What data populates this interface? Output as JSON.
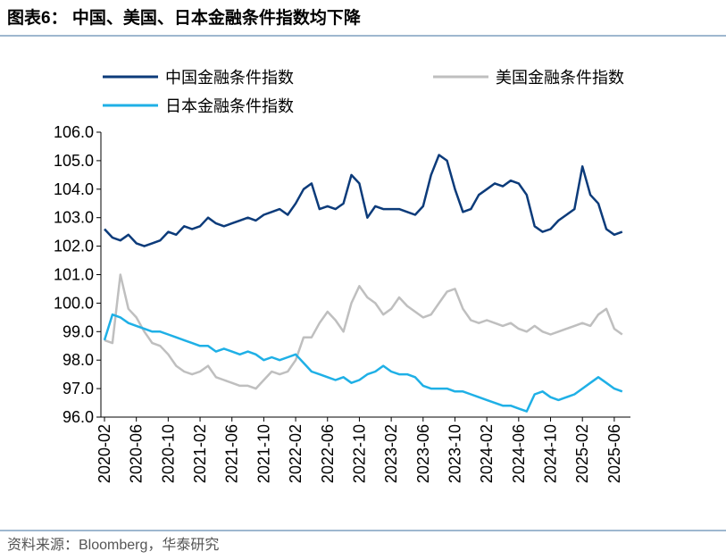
{
  "chart_data": {
    "type": "line",
    "title": "图表6：  中国、美国、日本金融条件指数均下降",
    "source": "资料来源：Bloomberg，华泰研究",
    "x": [
      "2020-02",
      "2020-03",
      "2020-04",
      "2020-05",
      "2020-06",
      "2020-07",
      "2020-08",
      "2020-09",
      "2020-10",
      "2020-11",
      "2020-12",
      "2021-01",
      "2021-02",
      "2021-03",
      "2021-04",
      "2021-05",
      "2021-06",
      "2021-07",
      "2021-08",
      "2021-09",
      "2021-10",
      "2021-11",
      "2021-12",
      "2022-01",
      "2022-02",
      "2022-03",
      "2022-04",
      "2022-05",
      "2022-06",
      "2022-07",
      "2022-08",
      "2022-09",
      "2022-10",
      "2022-11",
      "2022-12",
      "2023-01",
      "2023-02",
      "2023-03",
      "2023-04",
      "2023-05",
      "2023-06",
      "2023-07",
      "2023-08",
      "2023-09",
      "2023-10",
      "2023-11",
      "2023-12",
      "2024-01",
      "2024-02",
      "2024-03",
      "2024-04",
      "2024-05",
      "2024-06",
      "2024-07",
      "2024-08",
      "2024-09",
      "2024-10",
      "2024-11",
      "2024-12",
      "2025-01",
      "2025-02",
      "2025-03",
      "2025-04",
      "2025-05",
      "2025-06",
      "2025-07"
    ],
    "xticks": [
      "2020-02",
      "2020-06",
      "2020-10",
      "2021-02",
      "2021-06",
      "2021-10",
      "2022-02",
      "2022-06",
      "2022-10",
      "2023-02",
      "2023-06",
      "2023-10",
      "2024-02",
      "2024-06",
      "2024-10",
      "2025-02",
      "2025-06"
    ],
    "series": [
      {
        "name": "中国金融条件指数",
        "color": "#0c3b7a",
        "values": [
          102.6,
          102.3,
          102.2,
          102.4,
          102.1,
          102.0,
          102.1,
          102.2,
          102.5,
          102.4,
          102.7,
          102.6,
          102.7,
          103.0,
          102.8,
          102.7,
          102.8,
          102.9,
          103.0,
          102.9,
          103.1,
          103.2,
          103.3,
          103.1,
          103.5,
          104.0,
          104.2,
          103.3,
          103.4,
          103.3,
          103.5,
          104.5,
          104.2,
          103.0,
          103.4,
          103.3,
          103.3,
          103.3,
          103.2,
          103.1,
          103.4,
          104.5,
          105.2,
          105.0,
          104.0,
          103.2,
          103.3,
          103.8,
          104.0,
          104.2,
          104.1,
          104.3,
          104.2,
          103.8,
          102.7,
          102.5,
          102.6,
          102.9,
          103.1,
          103.3,
          104.8,
          103.8,
          103.5,
          102.6,
          102.4,
          102.5
        ]
      },
      {
        "name": "美国金融条件指数",
        "color": "#bfbfbf",
        "values": [
          98.7,
          98.6,
          101.0,
          99.8,
          99.5,
          99.0,
          98.6,
          98.5,
          98.2,
          97.8,
          97.6,
          97.5,
          97.6,
          97.8,
          97.4,
          97.3,
          97.2,
          97.1,
          97.1,
          97.0,
          97.3,
          97.6,
          97.5,
          97.6,
          98.0,
          98.8,
          98.8,
          99.3,
          99.7,
          99.4,
          99.0,
          100.0,
          100.6,
          100.2,
          100.0,
          99.6,
          99.8,
          100.2,
          99.9,
          99.7,
          99.5,
          99.6,
          100.0,
          100.4,
          100.5,
          99.8,
          99.4,
          99.3,
          99.4,
          99.3,
          99.2,
          99.3,
          99.1,
          99.0,
          99.2,
          99.0,
          98.9,
          99.0,
          99.1,
          99.2,
          99.3,
          99.2,
          99.6,
          99.8,
          99.1,
          98.9
        ]
      },
      {
        "name": "日本金融条件指数",
        "color": "#1fb0e6",
        "values": [
          98.7,
          99.6,
          99.5,
          99.3,
          99.2,
          99.1,
          99.0,
          99.0,
          98.9,
          98.8,
          98.7,
          98.6,
          98.5,
          98.5,
          98.3,
          98.4,
          98.3,
          98.2,
          98.3,
          98.2,
          98.0,
          98.1,
          98.0,
          98.1,
          98.2,
          97.9,
          97.6,
          97.5,
          97.4,
          97.3,
          97.4,
          97.2,
          97.3,
          97.5,
          97.6,
          97.8,
          97.6,
          97.5,
          97.5,
          97.4,
          97.1,
          97.0,
          97.0,
          97.0,
          96.9,
          96.9,
          96.8,
          96.7,
          96.6,
          96.5,
          96.4,
          96.4,
          96.3,
          96.2,
          96.8,
          96.9,
          96.7,
          96.6,
          96.7,
          96.8,
          97.0,
          97.2,
          97.4,
          97.2,
          97.0,
          96.9
        ]
      }
    ],
    "ylim": [
      96,
      106
    ],
    "yticks": [
      {
        "value": 96,
        "label": "96.0"
      },
      {
        "value": 97,
        "label": "97.0"
      },
      {
        "value": 98,
        "label": "98.0"
      },
      {
        "value": 99,
        "label": "99.0"
      },
      {
        "value": 100,
        "label": "100.0"
      },
      {
        "value": 101,
        "label": "101.0"
      },
      {
        "value": 102,
        "label": "102.0"
      },
      {
        "value": 103,
        "label": "103.0"
      },
      {
        "value": 104,
        "label": "104.0"
      },
      {
        "value": 105,
        "label": "105.0"
      },
      {
        "value": 106,
        "label": "106.0"
      }
    ],
    "grid": false
  }
}
